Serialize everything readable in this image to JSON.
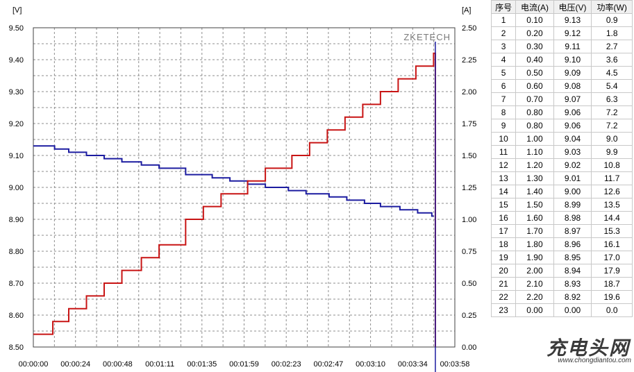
{
  "chart_data": {
    "type": "line",
    "brand_label": "ZKETECH",
    "left_unit": "[V]",
    "right_unit": "[A]",
    "x_ticks": [
      "00:00:00",
      "00:00:24",
      "00:00:48",
      "00:01:11",
      "00:01:35",
      "00:01:59",
      "00:02:23",
      "00:02:47",
      "00:03:10",
      "00:03:34",
      "00:03:58"
    ],
    "xlim_seconds": [
      0,
      238
    ],
    "y_left_ticks": [
      "8.50",
      "8.60",
      "8.70",
      "8.80",
      "8.90",
      "9.00",
      "9.10",
      "9.20",
      "9.30",
      "9.40",
      "9.50"
    ],
    "ylim_left": [
      8.5,
      9.5
    ],
    "y_right_ticks": [
      "0.00",
      "0.25",
      "0.50",
      "0.75",
      "1.00",
      "1.25",
      "1.50",
      "1.75",
      "2.00",
      "2.25",
      "2.50"
    ],
    "ylim_right": [
      0,
      2.5
    ],
    "cursor_time_seconds": 227,
    "grid": true,
    "series": [
      {
        "axis": "left",
        "color": "#1c1ca0",
        "steps": [
          [
            0,
            9.13
          ],
          [
            12,
            9.12
          ],
          [
            20,
            9.11
          ],
          [
            30,
            9.1
          ],
          [
            40,
            9.09
          ],
          [
            50,
            9.08
          ],
          [
            61,
            9.07
          ],
          [
            71,
            9.06
          ],
          [
            86,
            9.04
          ],
          [
            101,
            9.03
          ],
          [
            111,
            9.02
          ],
          [
            121,
            9.01
          ],
          [
            131,
            9.0
          ],
          [
            144,
            8.99
          ],
          [
            154,
            8.98
          ],
          [
            167,
            8.97
          ],
          [
            177,
            8.96
          ],
          [
            187,
            8.95
          ],
          [
            196,
            8.94
          ],
          [
            207,
            8.93
          ],
          [
            217,
            8.92
          ],
          [
            225,
            8.91
          ]
        ],
        "end_seconds": 226
      },
      {
        "axis": "right",
        "color": "#c81414",
        "steps": [
          [
            0,
            0.1
          ],
          [
            11,
            0.2
          ],
          [
            20,
            0.3
          ],
          [
            30,
            0.4
          ],
          [
            40,
            0.5
          ],
          [
            50,
            0.6
          ],
          [
            61,
            0.7
          ],
          [
            71,
            0.8
          ],
          [
            86,
            1.0
          ],
          [
            96,
            1.1
          ],
          [
            106,
            1.2
          ],
          [
            121,
            1.3
          ],
          [
            131,
            1.4
          ],
          [
            146,
            1.5
          ],
          [
            156,
            1.6
          ],
          [
            166,
            1.7
          ],
          [
            176,
            1.8
          ],
          [
            186,
            1.9
          ],
          [
            196,
            2.0
          ],
          [
            206,
            2.1
          ],
          [
            216,
            2.2
          ],
          [
            226,
            2.3
          ]
        ],
        "end_seconds": 227,
        "final_value": 0.0
      }
    ]
  },
  "table": {
    "headers": [
      "序号",
      "电流(A)",
      "电压(V)",
      "功率(W)"
    ],
    "rows": [
      [
        "1",
        "0.10",
        "9.13",
        "0.9"
      ],
      [
        "2",
        "0.20",
        "9.12",
        "1.8"
      ],
      [
        "3",
        "0.30",
        "9.11",
        "2.7"
      ],
      [
        "4",
        "0.40",
        "9.10",
        "3.6"
      ],
      [
        "5",
        "0.50",
        "9.09",
        "4.5"
      ],
      [
        "6",
        "0.60",
        "9.08",
        "5.4"
      ],
      [
        "7",
        "0.70",
        "9.07",
        "6.3"
      ],
      [
        "8",
        "0.80",
        "9.06",
        "7.2"
      ],
      [
        "9",
        "0.80",
        "9.06",
        "7.2"
      ],
      [
        "10",
        "1.00",
        "9.04",
        "9.0"
      ],
      [
        "11",
        "1.10",
        "9.03",
        "9.9"
      ],
      [
        "12",
        "1.20",
        "9.02",
        "10.8"
      ],
      [
        "13",
        "1.30",
        "9.01",
        "11.7"
      ],
      [
        "14",
        "1.40",
        "9.00",
        "12.6"
      ],
      [
        "15",
        "1.50",
        "8.99",
        "13.5"
      ],
      [
        "16",
        "1.60",
        "8.98",
        "14.4"
      ],
      [
        "17",
        "1.70",
        "8.97",
        "15.3"
      ],
      [
        "18",
        "1.80",
        "8.96",
        "16.1"
      ],
      [
        "19",
        "1.90",
        "8.95",
        "17.0"
      ],
      [
        "20",
        "2.00",
        "8.94",
        "17.9"
      ],
      [
        "21",
        "2.10",
        "8.93",
        "18.7"
      ],
      [
        "22",
        "2.20",
        "8.92",
        "19.6"
      ],
      [
        "23",
        "0.00",
        "0.00",
        "0.0"
      ]
    ]
  },
  "watermark": {
    "logo_text": "充电头网",
    "site_text": "www.chongdiantou.com"
  }
}
